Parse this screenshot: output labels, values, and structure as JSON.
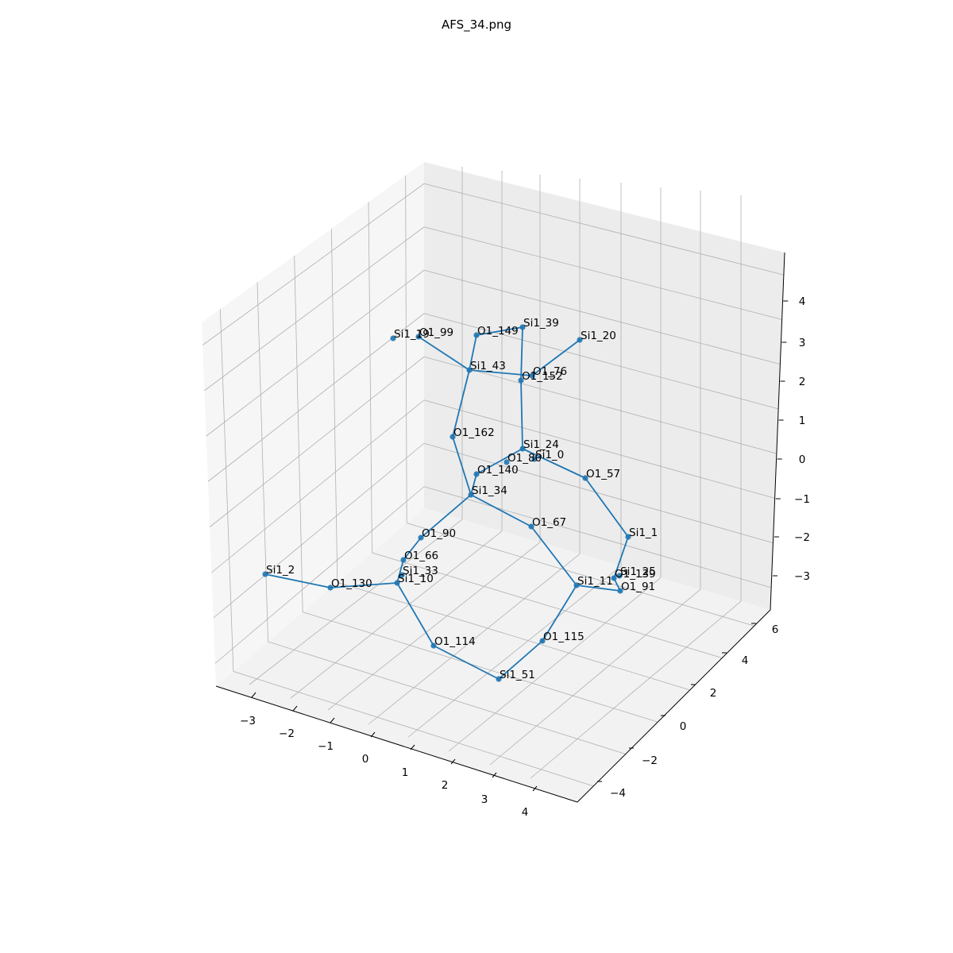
{
  "chart_data": {
    "type": "scatter",
    "title": "AFS_34.png",
    "xlabel": "",
    "ylabel": "",
    "zlabel": "",
    "grid": true,
    "x_ticks": [
      "−3",
      "−2",
      "−1",
      "0",
      "1",
      "2",
      "3",
      "4"
    ],
    "y_ticks": [
      "−4",
      "−2",
      "0",
      "2",
      "4",
      "6"
    ],
    "z_ticks": [
      "−3",
      "−2",
      "−1",
      "0",
      "1",
      "2",
      "3",
      "4"
    ],
    "colors": {
      "series": "#1f77b4",
      "pane_left": "#f6f6f6",
      "pane_back": "#ececec",
      "pane_floor": "#f2f2f2",
      "grid": "#b0b0b0",
      "axis": "#000000"
    },
    "points": [
      {
        "label": "Si1_19",
        "proj": [
          495,
          426
        ]
      },
      {
        "label": "O1_99",
        "proj": [
          527,
          424
        ]
      },
      {
        "label": "O1_149",
        "proj": [
          600,
          422
        ]
      },
      {
        "label": "Si1_39",
        "proj": [
          658,
          412
        ]
      },
      {
        "label": "Si1_20",
        "proj": [
          730,
          428
        ]
      },
      {
        "label": "Si1_43",
        "proj": [
          591,
          466
        ]
      },
      {
        "label": "O1_76",
        "proj": [
          670,
          473
        ]
      },
      {
        "label": "O1_152",
        "proj": [
          656,
          479
        ]
      },
      {
        "label": "O1_162",
        "proj": [
          570,
          550
        ]
      },
      {
        "label": "Si1_24",
        "proj": [
          658,
          565
        ]
      },
      {
        "label": "O1_80",
        "proj": [
          638,
          582
        ]
      },
      {
        "label": "Si1_0",
        "proj": [
          673,
          578
        ]
      },
      {
        "label": "O1_140",
        "proj": [
          600,
          597
        ]
      },
      {
        "label": "O1_57",
        "proj": [
          737,
          602
        ]
      },
      {
        "label": "Si1_34",
        "proj": [
          593,
          623
        ]
      },
      {
        "label": "O1_67",
        "proj": [
          669,
          663
        ]
      },
      {
        "label": "O1_90",
        "proj": [
          530,
          677
        ]
      },
      {
        "label": "Si1_1",
        "proj": [
          791,
          676
        ]
      },
      {
        "label": "O1_66",
        "proj": [
          508,
          705
        ]
      },
      {
        "label": "Si1_2",
        "proj": [
          334,
          723
        ]
      },
      {
        "label": "Si1_33",
        "proj": [
          506,
          724
        ]
      },
      {
        "label": "O1_139",
        "proj": [
          773,
          728
        ]
      },
      {
        "label": "Si1_25",
        "proj": [
          780,
          725
        ]
      },
      {
        "label": "Si1_10",
        "proj": [
          500,
          734
        ]
      },
      {
        "label": "Si1_11",
        "proj": [
          726,
          737
        ]
      },
      {
        "label": "O1_130",
        "proj": [
          416,
          740
        ]
      },
      {
        "label": "O1_91",
        "proj": [
          781,
          744
        ]
      },
      {
        "label": "O1_115",
        "proj": [
          683,
          807
        ]
      },
      {
        "label": "O1_114",
        "proj": [
          546,
          813
        ]
      },
      {
        "label": "Si1_51",
        "proj": [
          628,
          855
        ]
      }
    ],
    "bonds": [
      [
        "O1_99",
        "Si1_43"
      ],
      [
        "O1_149",
        "Si1_43"
      ],
      [
        "O1_149",
        "Si1_39"
      ],
      [
        "Si1_39",
        "O1_152"
      ],
      [
        "Si1_20",
        "O1_76"
      ],
      [
        "Si1_43",
        "O1_76"
      ],
      [
        "Si1_43",
        "O1_162"
      ],
      [
        "O1_152",
        "Si1_24"
      ],
      [
        "O1_162",
        "Si1_34"
      ],
      [
        "Si1_24",
        "O1_140"
      ],
      [
        "Si1_24",
        "O1_57"
      ],
      [
        "O1_140",
        "Si1_34"
      ],
      [
        "O1_57",
        "Si1_1"
      ],
      [
        "Si1_34",
        "O1_67"
      ],
      [
        "Si1_34",
        "O1_90"
      ],
      [
        "O1_90",
        "O1_66"
      ],
      [
        "O1_66",
        "Si1_10"
      ],
      [
        "Si1_2",
        "O1_130"
      ],
      [
        "O1_130",
        "Si1_10"
      ],
      [
        "Si1_10",
        "O1_114"
      ],
      [
        "O1_114",
        "Si1_51"
      ],
      [
        "Si1_51",
        "O1_115"
      ],
      [
        "O1_115",
        "Si1_11"
      ],
      [
        "O1_67",
        "Si1_11"
      ],
      [
        "Si1_11",
        "O1_91"
      ],
      [
        "Si1_1",
        "O1_139"
      ],
      [
        "O1_139",
        "O1_91"
      ]
    ]
  }
}
